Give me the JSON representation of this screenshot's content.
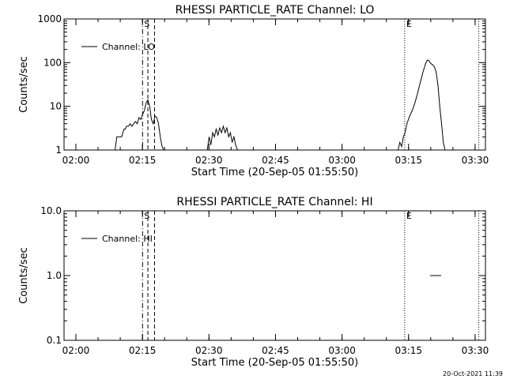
{
  "chart_data": [
    {
      "type": "line",
      "title": "RHESSI PARTICLE_RATE Channel: LO",
      "xlabel": "Start Time (20-Sep-05 01:55:50)",
      "ylabel": "Counts/sec",
      "yscale": "log",
      "ylim": [
        1,
        1000
      ],
      "xlim_minutes": [
        1.5,
        96.5
      ],
      "x_tick_labels": [
        "02:00",
        "02:15",
        "02:30",
        "02:45",
        "03:00",
        "03:15",
        "03:30"
      ],
      "x_tick_minutes": [
        4.17,
        19.17,
        34.17,
        49.17,
        64.17,
        79.17,
        94.17
      ],
      "y_tick_labels": [
        "1",
        "10",
        "100",
        "1000"
      ],
      "y_tick_values": [
        1,
        10,
        100,
        1000
      ],
      "legend": "Channel: LO",
      "markers": [
        {
          "label": "S",
          "minute": 19.2,
          "style": "dash-dot"
        },
        {
          "label": "",
          "minute": 20.4,
          "style": "dashed"
        },
        {
          "label": "",
          "minute": 21.9,
          "style": "dashed"
        },
        {
          "label": "E",
          "minute": 78.3,
          "style": "dotted"
        },
        {
          "label": "",
          "minute": 95.0,
          "style": "dotted"
        }
      ],
      "series": [
        {
          "name": "Channel: LO",
          "segments": [
            {
              "x": [
                13.0,
                13.4,
                14.5,
                15.0,
                15.3,
                15.6,
                16.0,
                16.4,
                16.8,
                17.2,
                17.6,
                18.0,
                18.4,
                18.8,
                19.2,
                19.6,
                20.0,
                20.4,
                20.8,
                21.2,
                21.6,
                22.0,
                22.4,
                22.8,
                23.2,
                23.6,
                24.0
              ],
              "y": [
                1.0,
                2.0,
                2.0,
                3.0,
                3.0,
                3.5,
                3.5,
                4.0,
                3.5,
                4.0,
                4.5,
                4.0,
                5.5,
                5.0,
                6.5,
                8.0,
                12.0,
                14.0,
                10.0,
                5.0,
                4.0,
                6.0,
                5.5,
                4.0,
                2.0,
                1.2,
                1.0
              ]
            },
            {
              "x": [
                33.8,
                34.2,
                34.6,
                35.0,
                35.4,
                35.8,
                36.2,
                36.6,
                37.0,
                37.4,
                37.8,
                38.2,
                38.6,
                39.0,
                39.4,
                39.8,
                40.2,
                40.6
              ],
              "y": [
                1.0,
                2.0,
                1.3,
                2.5,
                2.0,
                3.0,
                2.2,
                3.2,
                2.5,
                3.5,
                2.5,
                3.2,
                2.0,
                2.5,
                1.5,
                2.0,
                1.3,
                1.0
              ]
            },
            {
              "x": [
                76.8,
                77.2,
                77.6,
                78.0,
                78.4,
                78.8,
                79.4,
                80.0,
                80.6,
                81.2,
                81.8,
                82.4,
                83.0,
                83.4,
                83.8,
                84.2,
                84.6,
                85.0,
                85.4,
                85.8,
                86.2,
                86.6,
                87.0,
                87.4
              ],
              "y": [
                1.0,
                1.5,
                1.2,
                2.0,
                2.5,
                4.0,
                6.0,
                8.0,
                12.0,
                20.0,
                35.0,
                60.0,
                95.0,
                115.0,
                110.0,
                95.0,
                90.0,
                80.0,
                60.0,
                30.0,
                10.0,
                4.0,
                1.5,
                1.0
              ]
            }
          ]
        }
      ]
    },
    {
      "type": "line",
      "title": "RHESSI PARTICLE_RATE Channel: HI",
      "xlabel": "Start Time (20-Sep-05 01:55:50)",
      "ylabel": "Counts/sec",
      "yscale": "log",
      "ylim": [
        0.1,
        10
      ],
      "xlim_minutes": [
        1.5,
        96.5
      ],
      "x_tick_labels": [
        "02:00",
        "02:15",
        "02:30",
        "02:45",
        "03:00",
        "03:15",
        "03:30"
      ],
      "x_tick_minutes": [
        4.17,
        19.17,
        34.17,
        49.17,
        64.17,
        79.17,
        94.17
      ],
      "y_tick_labels": [
        "0.1",
        "1.0",
        "10.0"
      ],
      "y_tick_values": [
        0.1,
        1,
        10
      ],
      "legend": "Channel: HI",
      "markers": [
        {
          "label": "S",
          "minute": 19.2,
          "style": "dash-dot"
        },
        {
          "label": "",
          "minute": 20.4,
          "style": "dashed"
        },
        {
          "label": "",
          "minute": 21.9,
          "style": "dashed"
        },
        {
          "label": "E",
          "minute": 78.3,
          "style": "dotted"
        },
        {
          "label": "",
          "minute": 95.0,
          "style": "dotted"
        }
      ],
      "series": [
        {
          "name": "Channel: HI",
          "segments": [
            {
              "x": [
                84.0,
                86.5
              ],
              "y": [
                1.0,
                1.0
              ]
            }
          ]
        }
      ]
    }
  ],
  "timestamp": "20-Oct-2021 11:39"
}
